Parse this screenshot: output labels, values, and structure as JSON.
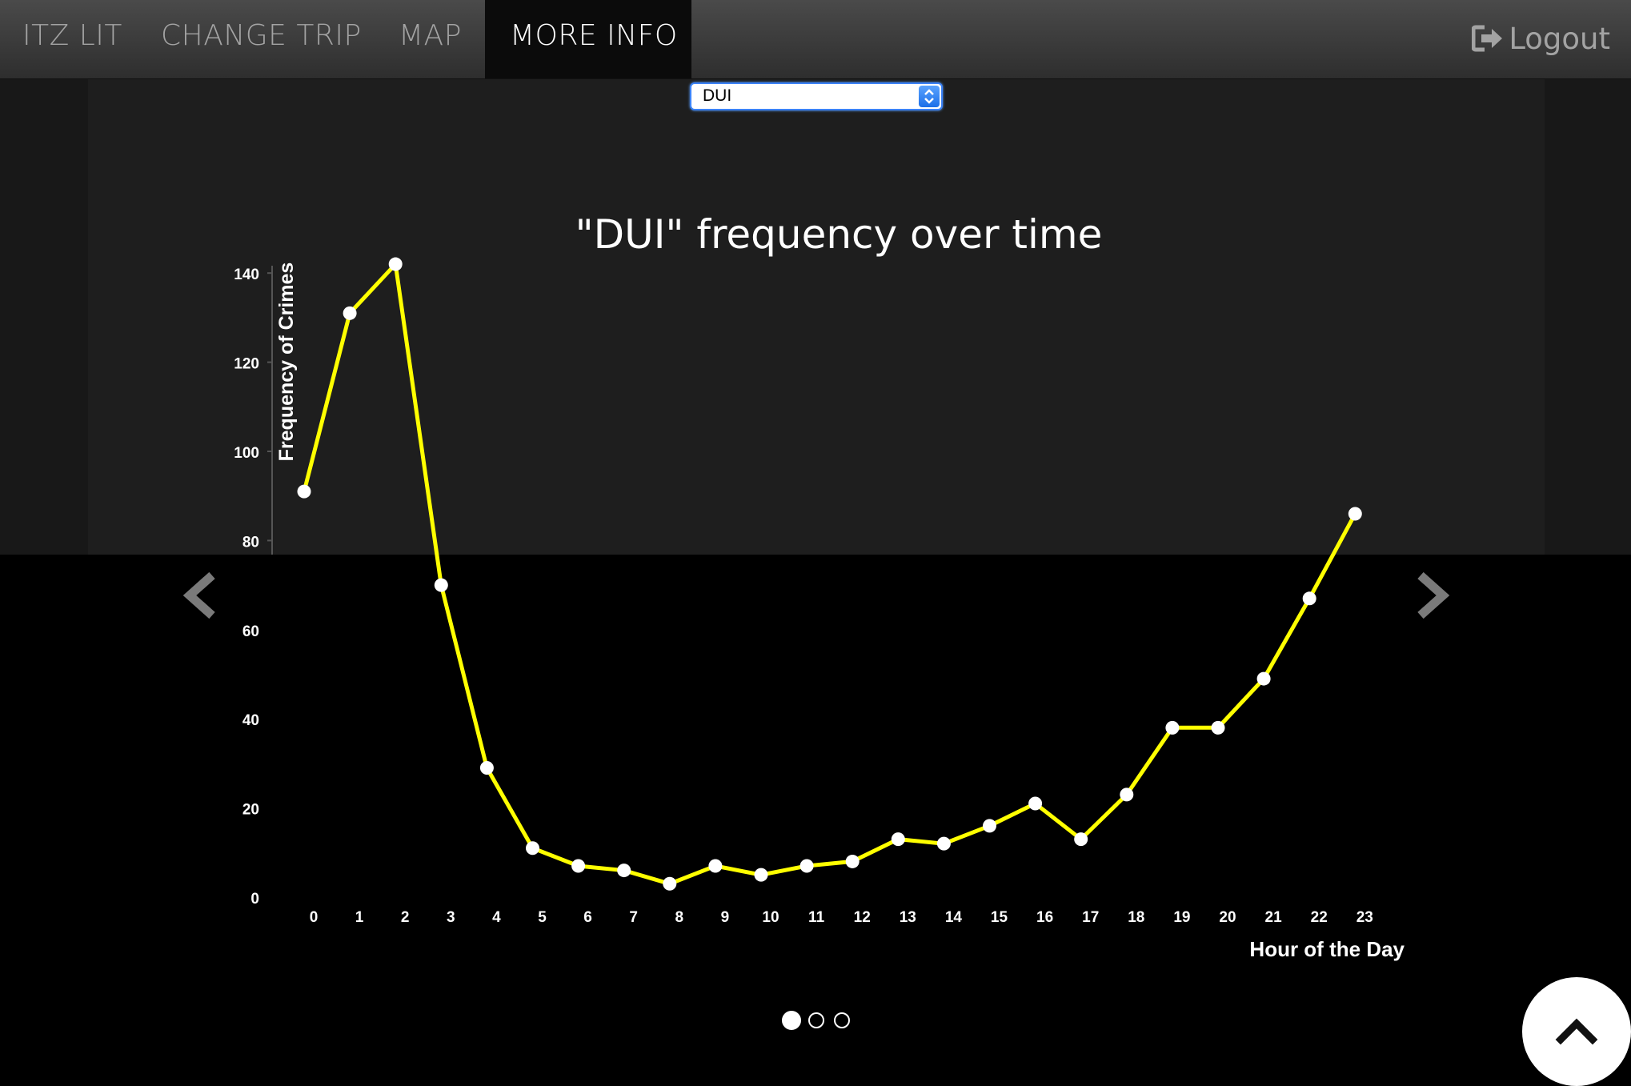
{
  "nav": {
    "items": [
      {
        "label": "ITZ LIT"
      },
      {
        "label": "CHANGE TRIP"
      },
      {
        "label": "MAP"
      },
      {
        "label": "MORE INFO",
        "active": true
      }
    ],
    "logout_label": "Logout",
    "logout_icon": "logout-icon"
  },
  "filter": {
    "selected": "DUI"
  },
  "carousel": {
    "prev_icon": "chevron-left-icon",
    "next_icon": "chevron-right-icon",
    "slide_count": 3,
    "active_index": 0
  },
  "scroll_top_icon": "chevron-up-icon",
  "colors": {
    "line": "#ffff00",
    "marker": "#ffffff",
    "text": "#ffffff"
  },
  "chart_data": {
    "type": "line",
    "title": "\"DUI\" frequency over time",
    "xlabel": "Hour of the Day",
    "ylabel": "Frequency of Crimes",
    "x": [
      0,
      1,
      2,
      3,
      4,
      5,
      6,
      7,
      8,
      9,
      10,
      11,
      12,
      13,
      14,
      15,
      16,
      17,
      18,
      19,
      20,
      21,
      22,
      23
    ],
    "series": [
      {
        "values": [
          91,
          131,
          142,
          70,
          29,
          11,
          7,
          6,
          3,
          7,
          5,
          7,
          8,
          13,
          12,
          16,
          21,
          13,
          23,
          38,
          38,
          49,
          67,
          86
        ]
      }
    ],
    "yticks": [
      0,
      20,
      40,
      60,
      80,
      100,
      120,
      140
    ],
    "ylim": [
      0,
      142
    ],
    "grid": false,
    "legend": "none"
  }
}
